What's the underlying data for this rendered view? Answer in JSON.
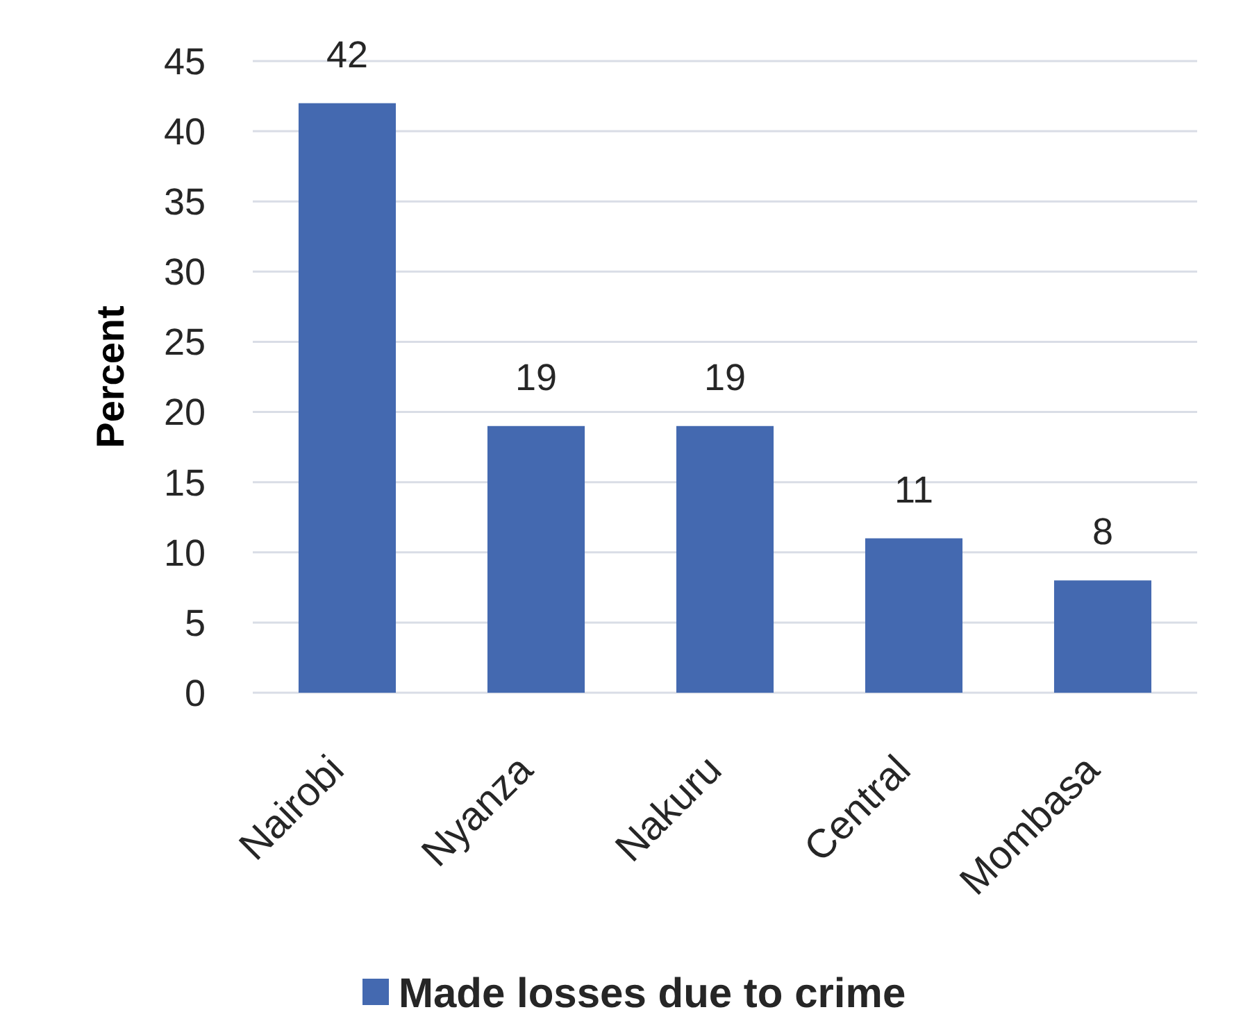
{
  "chart_data": {
    "type": "bar",
    "ylabel": "Percent",
    "categories": [
      "Nairobi",
      "Nyanza",
      "Nakuru",
      "Central",
      "Mombasa"
    ],
    "series": [
      {
        "name": "Made losses due to crime",
        "color": "#4469b0",
        "values": [
          42,
          19,
          19,
          11,
          8
        ]
      }
    ],
    "ylim": [
      0,
      45
    ],
    "yticks": [
      0,
      5,
      10,
      15,
      20,
      25,
      30,
      35,
      40,
      45
    ],
    "grid": "y",
    "legend": "bottom",
    "data_labels": true
  }
}
